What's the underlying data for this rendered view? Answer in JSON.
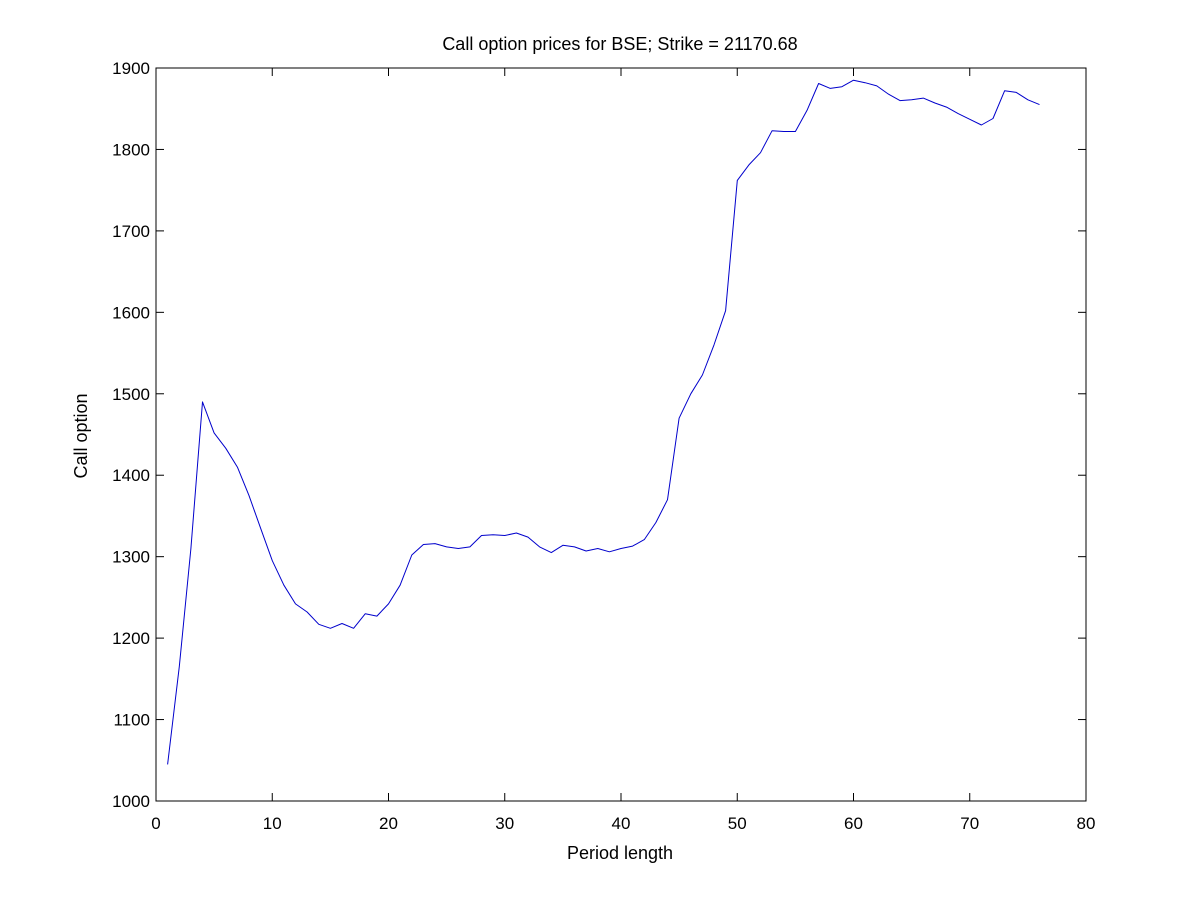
{
  "chart_data": {
    "type": "line",
    "title": "Call option prices for BSE; Strike = 21170.68",
    "xlabel": "Period length",
    "ylabel": "Call option",
    "xlim": [
      0,
      80
    ],
    "ylim": [
      1000,
      1900
    ],
    "xticks": [
      0,
      10,
      20,
      30,
      40,
      50,
      60,
      70,
      80
    ],
    "yticks": [
      1000,
      1100,
      1200,
      1300,
      1400,
      1500,
      1600,
      1700,
      1800,
      1900
    ],
    "grid": false,
    "legend": "none",
    "line_color": "#0000cc",
    "axis_color": "#000000",
    "series": [
      {
        "name": "Call option",
        "x": [
          1,
          2,
          3,
          4,
          5,
          6,
          7,
          8,
          9,
          10,
          11,
          12,
          13,
          14,
          15,
          16,
          17,
          18,
          19,
          20,
          21,
          22,
          23,
          24,
          25,
          26,
          27,
          28,
          29,
          30,
          31,
          32,
          33,
          34,
          35,
          36,
          37,
          38,
          39,
          40,
          41,
          42,
          43,
          44,
          45,
          46,
          47,
          48,
          49,
          50,
          51,
          52,
          53,
          54,
          55,
          56,
          57,
          58,
          59,
          60,
          61,
          62,
          63,
          64,
          65,
          66,
          67,
          68,
          69,
          70,
          71,
          72,
          73,
          74,
          75,
          76
        ],
        "values": [
          1045,
          1165,
          1310,
          1490,
          1452,
          1433,
          1410,
          1375,
          1335,
          1295,
          1265,
          1242,
          1232,
          1217,
          1212,
          1218,
          1212,
          1230,
          1227,
          1242,
          1265,
          1302,
          1315,
          1316,
          1312,
          1310,
          1312,
          1326,
          1327,
          1326,
          1329,
          1324,
          1312,
          1305,
          1314,
          1312,
          1307,
          1310,
          1306,
          1310,
          1313,
          1321,
          1342,
          1370,
          1470,
          1500,
          1523,
          1560,
          1602,
          1762,
          1781,
          1796,
          1823,
          1822,
          1822,
          1848,
          1881,
          1875,
          1877,
          1885,
          1882,
          1878,
          1868,
          1860,
          1861,
          1863,
          1857,
          1852,
          1844,
          1837,
          1830,
          1838,
          1872,
          1870,
          1861,
          1855
        ]
      }
    ]
  }
}
